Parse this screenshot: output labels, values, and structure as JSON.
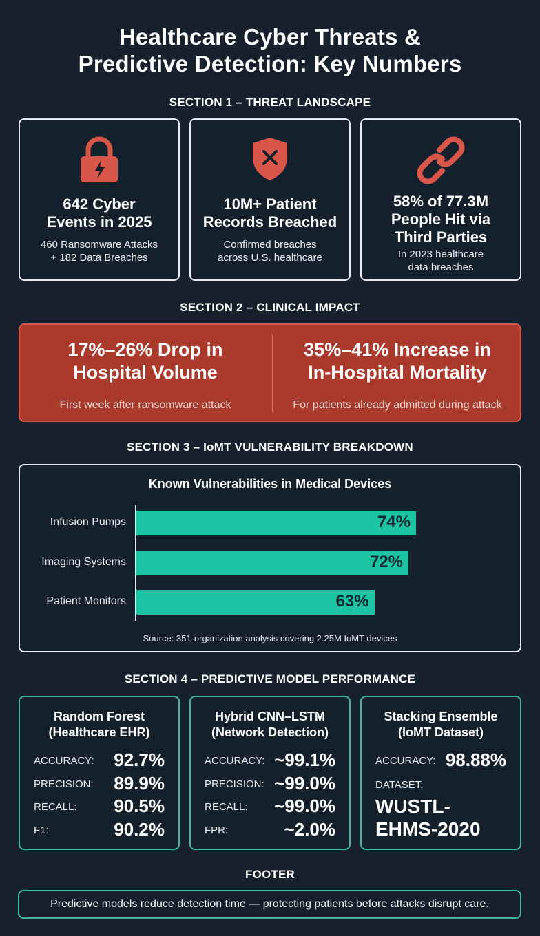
{
  "title_line1": "Healthcare Cyber Threats &",
  "title_line2": "Predictive Detection: Key Numbers",
  "section1": {
    "heading": "SECTION 1 – THREAT LANDSCAPE",
    "cards": [
      {
        "icon": "lock-icon",
        "main_l1": "642 Cyber",
        "main_l2": "Events in 2025",
        "sub_l1": "460 Ransomware Attacks",
        "sub_l2": "+ 182 Data Breaches"
      },
      {
        "icon": "shield-x-icon",
        "main_l1": "10M+ Patient",
        "main_l2": "Records Breached",
        "sub_l1": "Confirmed breaches",
        "sub_l2": "across U.S. healthcare"
      },
      {
        "icon": "chain-link-icon",
        "main_l1": "58% of 77.3M",
        "main_l2": "People Hit via",
        "main_l3": "Third Parties",
        "sub_l1": "In 2023 healthcare",
        "sub_l2": "data breaches"
      }
    ]
  },
  "section2": {
    "heading": "SECTION 2 – CLINICAL IMPACT",
    "left": {
      "main_l1": "17%–26% Drop in",
      "main_l2": "Hospital Volume",
      "sub": "First week after ransomware attack"
    },
    "right": {
      "main_l1": "35%–41% Increase in",
      "main_l2": "In-Hospital Mortality",
      "sub": "For patients already admitted during attack"
    }
  },
  "section3": {
    "heading": "SECTION 3 – IoMT VULNERABILITY BREAKDOWN",
    "source": "Source: 351-organization analysis covering 2.25M IoMT devices"
  },
  "chart_data": {
    "type": "bar",
    "orientation": "horizontal",
    "title": "Known Vulnerabilities in Medical Devices",
    "categories": [
      "Infusion Pumps",
      "Imaging Systems",
      "Patient Monitors"
    ],
    "values": [
      74,
      72,
      63
    ],
    "value_labels": [
      "74%",
      "72%",
      "63%"
    ],
    "xlim": [
      0,
      100
    ],
    "bar_color": "#1cc4a4"
  },
  "section4": {
    "heading": "SECTION 4 – PREDICTIVE MODEL PERFORMANCE",
    "models": [
      {
        "title_l1": "Random Forest",
        "title_l2": "(Healthcare EHR)",
        "metrics": [
          {
            "label": "ACCURACY:",
            "value": "92.7%"
          },
          {
            "label": "PRECISION:",
            "value": "89.9%"
          },
          {
            "label": "RECALL:",
            "value": "90.5%"
          },
          {
            "label": "F1:",
            "value": "90.2%"
          }
        ]
      },
      {
        "title_l1": "Hybrid CNN–LSTM",
        "title_l2": "(Network Detection)",
        "metrics": [
          {
            "label": "ACCURACY:",
            "value": "~99.1%"
          },
          {
            "label": "PRECISION:",
            "value": "~99.0%"
          },
          {
            "label": "RECALL:",
            "value": "~99.0%"
          },
          {
            "label": "FPR:",
            "value": "~2.0%"
          }
        ]
      },
      {
        "title_l1": "Stacking Ensemble",
        "title_l2": "(IoMT Dataset)",
        "metrics": [
          {
            "label": "ACCURACY:",
            "value": "98.88%"
          }
        ],
        "dataset_label": "DATASET:",
        "dataset_l1": "WUSTL-",
        "dataset_l2": "EHMS-2020"
      }
    ]
  },
  "footer": {
    "heading": "FOOTER",
    "text": "Predictive models reduce detection time — protecting patients before attacks disrupt care."
  },
  "colors": {
    "background": "#16212d",
    "alert_red": "#a93a2c",
    "icon_red": "#d9574a",
    "teal": "#1cc4a4"
  }
}
